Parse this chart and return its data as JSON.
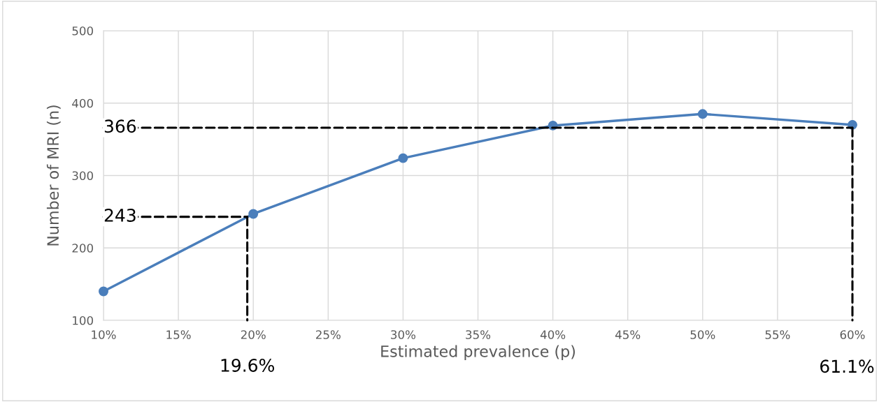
{
  "chart_data": {
    "type": "line",
    "xlabel": "Estimated prevalence (p)",
    "ylabel": "Number of MRI (n)",
    "x": [
      10,
      20,
      30,
      40,
      50,
      60
    ],
    "series": [
      {
        "color": "#4a7ebb",
        "values": [
          140,
          247,
          324,
          369,
          385,
          370
        ],
        "marker": "circle",
        "line_style": "solid"
      }
    ],
    "ref_lines": [
      {
        "axis": "y",
        "value": 366,
        "label": "366",
        "color": "#000000",
        "line_style": "dashed"
      },
      {
        "axis": "x",
        "value": 60,
        "color": "#000000",
        "line_style": "dashed"
      },
      {
        "axis": "y",
        "value": 243,
        "label": "243",
        "color": "#000000",
        "line_style": "dashed"
      },
      {
        "axis": "x",
        "value": 19.6,
        "label": "19.6%",
        "color": "#000000",
        "line_style": "dashed"
      }
    ],
    "xlim": [
      10,
      60
    ],
    "xticks": [
      {
        "value": 10,
        "label": "10%"
      },
      {
        "value": 15,
        "label": "15%"
      },
      {
        "value": 20,
        "label": "20%"
      },
      {
        "value": 25,
        "label": "25%"
      },
      {
        "value": 30,
        "label": "30%"
      },
      {
        "value": 35,
        "label": "35%"
      },
      {
        "value": 40,
        "label": "40%"
      },
      {
        "value": 45,
        "label": "45%"
      },
      {
        "value": 50,
        "label": "50%"
      },
      {
        "value": 55,
        "label": "55%"
      },
      {
        "value": 60,
        "label": "60%"
      }
    ],
    "ylim": [
      100,
      500
    ],
    "yticks": [
      100,
      200,
      300,
      400,
      500
    ],
    "annotations": [
      "61.1%"
    ],
    "grid": true,
    "legend": false
  }
}
